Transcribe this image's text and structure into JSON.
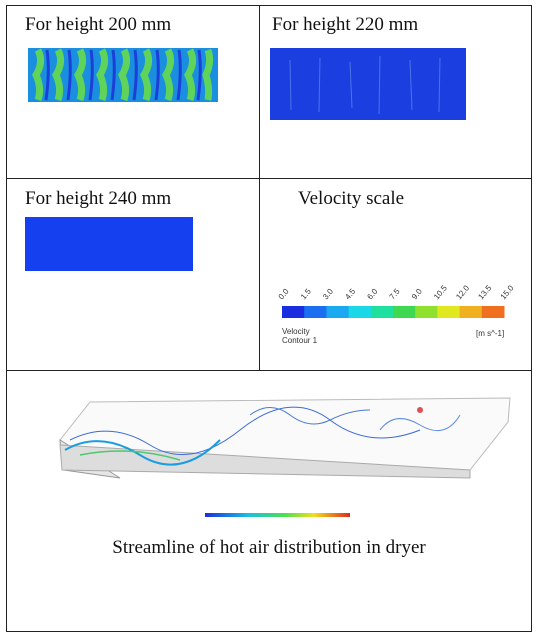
{
  "table": {
    "rows": [
      [
        "For height 200 mm",
        "For height 220 mm"
      ],
      [
        "For height 240 mm",
        "Velocity scale"
      ]
    ],
    "velocity_scale": {
      "ticks": [
        "0.0",
        "1.5",
        "3.0",
        "4.5",
        "6.0",
        "7.5",
        "9.0",
        "10.5",
        "12.0",
        "13.5",
        "15.0"
      ],
      "title": "Velocity",
      "subtitle": "Contour 1",
      "unit": "[m s^-1]"
    },
    "caption": "Streamline of hot air distribution in dryer"
  }
}
